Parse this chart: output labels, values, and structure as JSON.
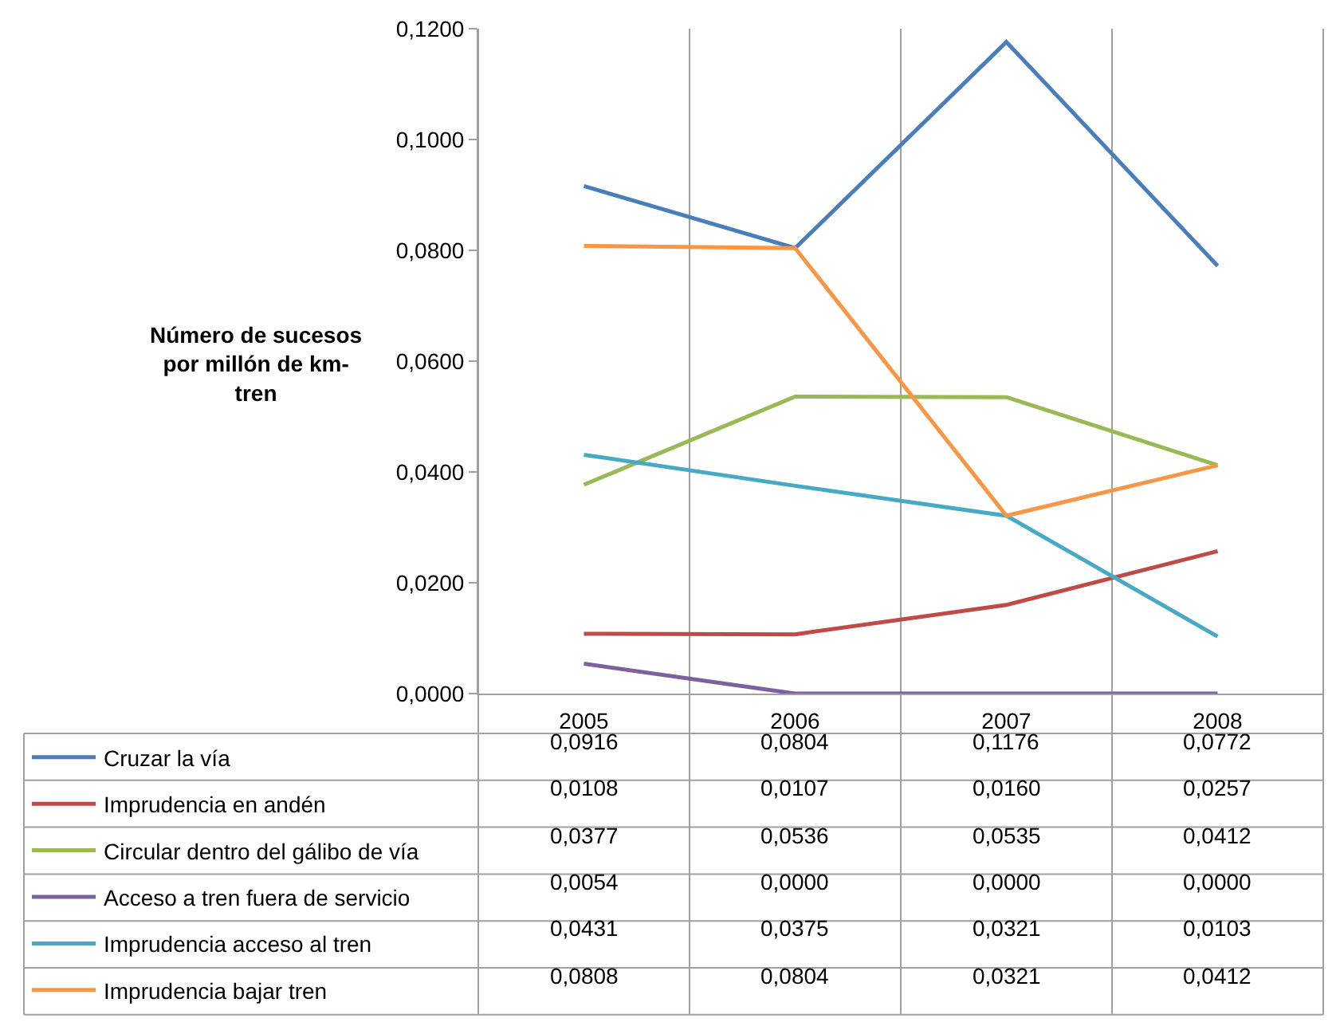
{
  "chart_data": {
    "type": "line",
    "ylabel": "Número de sucesos por millón de km-tren",
    "categories": [
      "2005",
      "2006",
      "2007",
      "2008"
    ],
    "ylim": [
      0,
      0.12
    ],
    "yticks": [
      {
        "value": 0,
        "label": "0,0000"
      },
      {
        "value": 0.02,
        "label": "0,0200"
      },
      {
        "value": 0.04,
        "label": "0,0400"
      },
      {
        "value": 0.06,
        "label": "0,0600"
      },
      {
        "value": 0.08,
        "label": "0,0800"
      },
      {
        "value": 0.1,
        "label": "0,1000"
      },
      {
        "value": 0.12,
        "label": "0,1200"
      }
    ],
    "grid": "x",
    "legend": "bottom left",
    "marker": "none",
    "line_style": "solid",
    "series": [
      {
        "name": "Cruzar la vía",
        "color": "#4a7ebb",
        "values": [
          0.0916,
          0.0804,
          0.1176,
          0.0772
        ],
        "value_labels": [
          "0,0916",
          "0,0804",
          "0,1176",
          "0,0772"
        ]
      },
      {
        "name": "Imprudencia en andén",
        "color": "#be4b48",
        "values": [
          0.0108,
          0.0107,
          0.016,
          0.0257
        ],
        "value_labels": [
          "0,0108",
          "0,0107",
          "0,0160",
          "0,0257"
        ]
      },
      {
        "name": "Circular dentro del gálibo de vía",
        "color": "#98b954",
        "values": [
          0.0377,
          0.0536,
          0.0535,
          0.0412
        ],
        "value_labels": [
          "0,0377",
          "0,0536",
          "0,0535",
          "0,0412"
        ]
      },
      {
        "name": "Acceso a tren fuera de servicio",
        "color": "#7d60a0",
        "values": [
          0.0054,
          0.0,
          0.0,
          0.0
        ],
        "value_labels": [
          "0,0054",
          "0,0000",
          "0,0000",
          "0,0000"
        ]
      },
      {
        "name": "Imprudencia acceso al tren",
        "color": "#46aac5",
        "values": [
          0.0431,
          0.0375,
          0.0321,
          0.0103
        ],
        "value_labels": [
          "0,0431",
          "0,0375",
          "0,0321",
          "0,0103"
        ]
      },
      {
        "name": "Imprudencia bajar tren",
        "color": "#f79646",
        "values": [
          0.0808,
          0.0804,
          0.0321,
          0.0412
        ],
        "value_labels": [
          "0,0808",
          "0,0804",
          "0,0321",
          "0,0412"
        ]
      }
    ]
  }
}
